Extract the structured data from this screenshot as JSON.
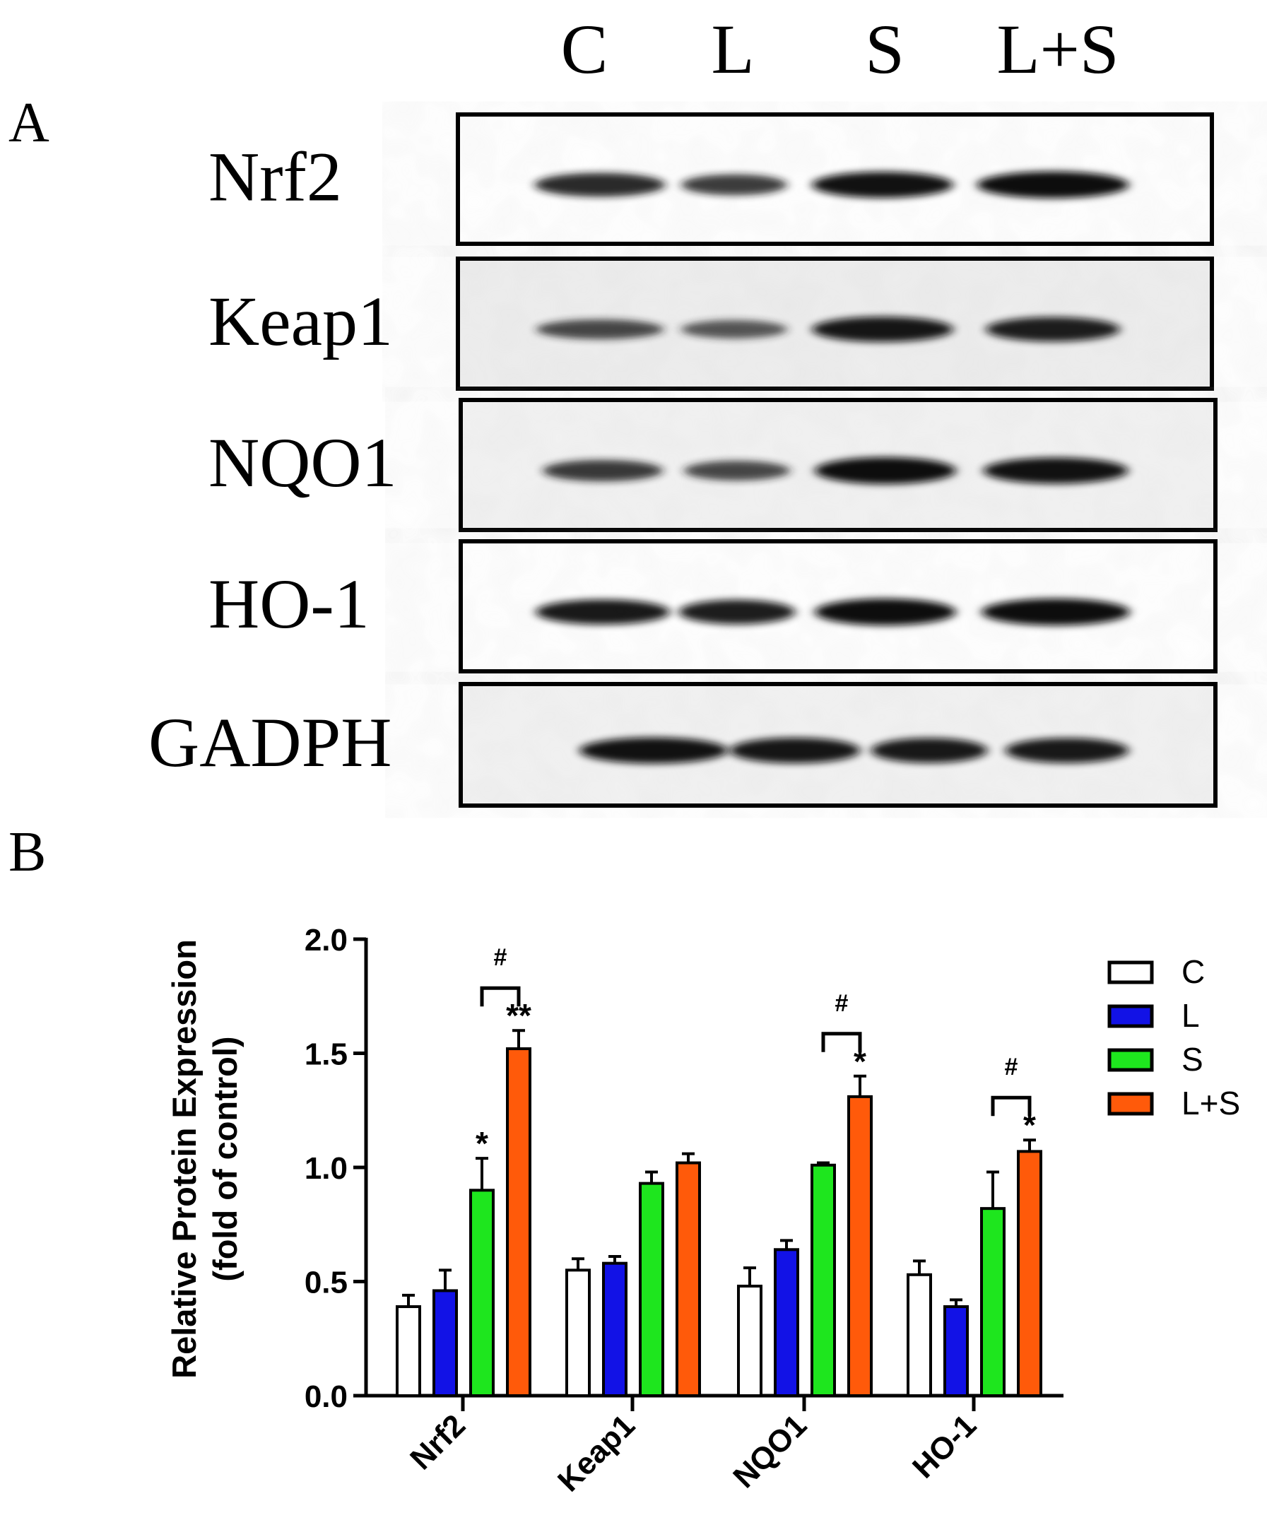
{
  "panel_a": {
    "label": "A",
    "lanes": [
      "C",
      "L",
      "S",
      "L+S"
    ],
    "blots": [
      {
        "protein": "Nrf2",
        "band_intensity": [
          0.8,
          0.62,
          0.95,
          1.0
        ],
        "background": "#ffffff"
      },
      {
        "protein": "Keap1",
        "band_intensity": [
          0.55,
          0.45,
          0.9,
          0.85
        ],
        "background": "#eeeeee"
      },
      {
        "protein": "NQO1",
        "band_intensity": [
          0.65,
          0.55,
          1.0,
          0.95
        ],
        "background": "#f2f2f2"
      },
      {
        "protein": "HO-1",
        "band_intensity": [
          0.88,
          0.85,
          1.0,
          1.0
        ],
        "background": "#ffffff"
      },
      {
        "protein": "GADPH",
        "band_intensity": [
          0.95,
          0.92,
          0.88,
          0.88
        ],
        "background": "#f2f2f2"
      }
    ]
  },
  "panel_b": {
    "label": "B"
  },
  "chart_data": {
    "type": "bar",
    "ylabel": [
      "Relative Protein Expression",
      "(fold of control)"
    ],
    "xlabel": "",
    "ylim": [
      0,
      2.0
    ],
    "yticks": [
      "0.0",
      "0.5",
      "1.0",
      "1.5",
      "2.0"
    ],
    "categories": [
      "Nrf2",
      "Keap1",
      "NQO1",
      "HO-1"
    ],
    "series": [
      {
        "name": "C",
        "color": "#ffffff",
        "values": [
          0.39,
          0.55,
          0.48,
          0.53
        ],
        "errors": [
          0.05,
          0.05,
          0.08,
          0.06
        ]
      },
      {
        "name": "L",
        "color": "#1212e6",
        "values": [
          0.46,
          0.58,
          0.64,
          0.39
        ],
        "errors": [
          0.09,
          0.03,
          0.04,
          0.03
        ]
      },
      {
        "name": "S",
        "color": "#1ee61e",
        "values": [
          0.9,
          0.93,
          1.01,
          0.82
        ],
        "errors": [
          0.14,
          0.05,
          0.01,
          0.16
        ]
      },
      {
        "name": "L+S",
        "color": "#ff5a0a",
        "values": [
          1.52,
          1.02,
          1.31,
          1.07
        ],
        "errors": [
          0.08,
          0.04,
          0.09,
          0.05
        ]
      }
    ],
    "annotations": [
      {
        "category": 0,
        "series": 2,
        "text": "*"
      },
      {
        "category": 0,
        "series": 3,
        "text": "**"
      },
      {
        "category": 2,
        "series": 3,
        "text": "*"
      },
      {
        "category": 3,
        "series": 3,
        "text": "*"
      }
    ],
    "brackets": [
      {
        "category": 0,
        "from_series": 2,
        "to_series": 3,
        "text": "#"
      },
      {
        "category": 2,
        "from_series": 2,
        "to_series": 3,
        "text": "#"
      },
      {
        "category": 3,
        "from_series": 2,
        "to_series": 3,
        "text": "#"
      }
    ],
    "legend_position": "right"
  }
}
